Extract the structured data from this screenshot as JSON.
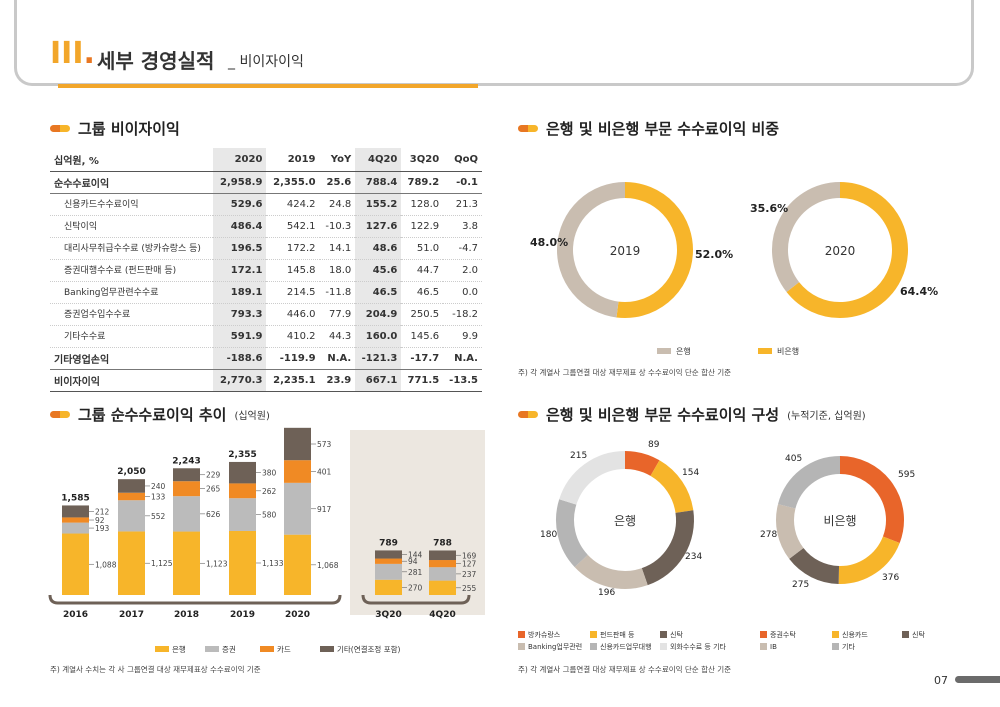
{
  "header": {
    "section_no": "III",
    "title": "세부 경영실적",
    "subtitle": "_ 비이자이익"
  },
  "colors": {
    "bank": "#f7b52a",
    "securities": "#bbbbbb",
    "card": "#f08a24",
    "other": "#6e6157",
    "nonbank": "#f7b52a",
    "bank_pie": "#c9bdb0"
  },
  "table": {
    "title": "그룹 비이자이익",
    "headers": [
      "십억원, %",
      "2020",
      "2019",
      "YoY",
      "4Q20",
      "3Q20",
      "QoQ"
    ],
    "rows": [
      {
        "label": "순수수료이익",
        "vals": [
          "2,958.9",
          "2,355.0",
          "25.6",
          "788.4",
          "789.2",
          "-0.1"
        ],
        "bold": true
      },
      {
        "label": "신용카드수수료이익",
        "vals": [
          "529.6",
          "424.2",
          "24.8",
          "155.2",
          "128.0",
          "21.3"
        ]
      },
      {
        "label": "신탁이익",
        "vals": [
          "486.4",
          "542.1",
          "-10.3",
          "127.6",
          "122.9",
          "3.8"
        ]
      },
      {
        "label": "대리사무취급수수료 (방카슈랑스 등)",
        "vals": [
          "196.5",
          "172.2",
          "14.1",
          "48.6",
          "51.0",
          "-4.7"
        ]
      },
      {
        "label": "증권대행수수료 (펀드판매 등)",
        "vals": [
          "172.1",
          "145.8",
          "18.0",
          "45.6",
          "44.7",
          "2.0"
        ]
      },
      {
        "label": "Banking업무관련수수료",
        "vals": [
          "189.1",
          "214.5",
          "-11.8",
          "46.5",
          "46.5",
          "0.0"
        ]
      },
      {
        "label": "증권업수입수수료",
        "vals": [
          "793.3",
          "446.0",
          "77.9",
          "204.9",
          "250.5",
          "-18.2"
        ]
      },
      {
        "label": "기타수수료",
        "vals": [
          "591.9",
          "410.2",
          "44.3",
          "160.0",
          "145.6",
          "9.9"
        ]
      },
      {
        "label": "기타영업손익",
        "vals": [
          "-188.6",
          "-119.9",
          "N.A.",
          "-121.3",
          "-17.7",
          "N.A."
        ],
        "bold": true
      },
      {
        "label": "비이자이익",
        "vals": [
          "2,770.3",
          "2,235.1",
          "23.9",
          "667.1",
          "771.5",
          "-13.5"
        ],
        "bold": true,
        "last": true
      }
    ]
  },
  "ratio": {
    "title": "은행 및 비은행 부문 수수료이익 비중",
    "donuts": [
      {
        "year": "2019",
        "bank": "48.0%",
        "nonbank": "52.0%"
      },
      {
        "year": "2020",
        "bank": "35.6%",
        "nonbank": "64.4%"
      }
    ],
    "legend": [
      "은행",
      "비은행"
    ],
    "note": "주) 각 계열사 그룹연결 대상 재무제표 상 수수료이익 단순 합산 기준"
  },
  "trend": {
    "title": "그룹 순수수료이익 추이",
    "unit": "(십억원)",
    "legend": [
      "은행",
      "증권",
      "카드",
      "기타(연결조정 포함)"
    ],
    "note": "주) 계열사 수치는 각 사 그룹연결 대상 재무제표상 수수료이익 기준"
  },
  "composition": {
    "title": "은행 및 비은행 부문 수수료이익 구성",
    "unit": "(누적기준, 십억원)",
    "bank_label": "은행",
    "nonbank_label": "비은행",
    "legend_bank": [
      "방카슈랑스",
      "펀드판매 등",
      "신탁",
      "Banking업무관련",
      "신용카드업무대행",
      "외화수수료 등 기타"
    ],
    "legend_nonbank": [
      "증권수탁",
      "신용카드",
      "신탁",
      "IB",
      "기타"
    ],
    "note": "주) 각 계열사 그룹연결 대상 재무제표 상 수수료이익 단순 합산 기준"
  },
  "chart_data": [
    {
      "type": "pie",
      "title": "2019",
      "labels": [
        "은행",
        "비은행"
      ],
      "values": [
        48.0,
        52.0
      ]
    },
    {
      "type": "pie",
      "title": "2020",
      "labels": [
        "은행",
        "비은행"
      ],
      "values": [
        35.6,
        64.4
      ]
    },
    {
      "type": "bar",
      "stacked": true,
      "categories": [
        "2016",
        "2017",
        "2018",
        "2019",
        "2020"
      ],
      "totals": [
        "1,585",
        "2,050",
        "2,243",
        "2,355",
        "2,959"
      ],
      "series": [
        {
          "name": "은행",
          "values": [
            1088,
            1125,
            1123,
            1133,
            1068
          ],
          "labels": [
            "1,088",
            "1,125",
            "1,123",
            "1,133",
            "1,068"
          ]
        },
        {
          "name": "증권",
          "values": [
            193,
            552,
            626,
            580,
            917
          ],
          "labels": [
            "193",
            "552",
            "626",
            "580",
            "917"
          ]
        },
        {
          "name": "카드",
          "values": [
            92,
            133,
            265,
            262,
            401
          ],
          "labels": [
            "92",
            "133",
            "265",
            "262",
            "401"
          ]
        },
        {
          "name": "기타(연결조정 포함)",
          "values": [
            212,
            240,
            229,
            380,
            573
          ],
          "labels": [
            "212",
            "240",
            "229",
            "380",
            "573"
          ]
        }
      ]
    },
    {
      "type": "bar",
      "stacked": true,
      "categories": [
        "3Q20",
        "4Q20"
      ],
      "totals": [
        "789",
        "788"
      ],
      "series": [
        {
          "name": "은행",
          "values": [
            270,
            255
          ]
        },
        {
          "name": "증권",
          "values": [
            281,
            237
          ]
        },
        {
          "name": "카드",
          "values": [
            94,
            127
          ]
        },
        {
          "name": "기타(연결조정 포함)",
          "values": [
            144,
            169
          ]
        }
      ]
    },
    {
      "type": "pie",
      "title": "은행",
      "labels": [
        "방카슈랑스",
        "펀드판매 등",
        "신탁",
        "Banking업무관련",
        "신용카드업무대행",
        "외화수수료 등 기타"
      ],
      "values": [
        89,
        154,
        234,
        196,
        180,
        215
      ]
    },
    {
      "type": "pie",
      "title": "비은행",
      "labels": [
        "증권수탁",
        "신용카드",
        "신탁",
        "IB",
        "기타"
      ],
      "values": [
        595,
        376,
        275,
        278,
        405
      ]
    }
  ]
}
